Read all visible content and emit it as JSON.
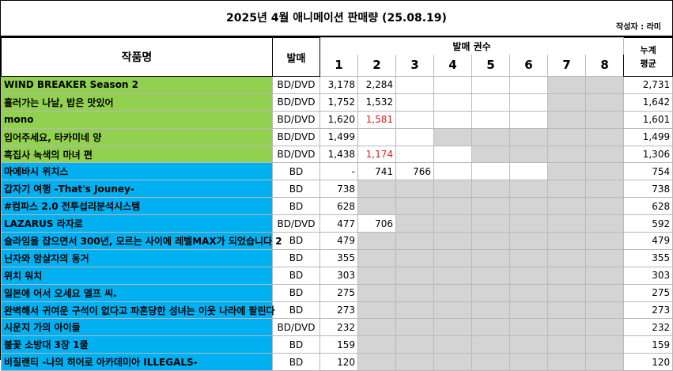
{
  "header": {
    "title": "2025년 4월 애니메이션 판매량 (25.08.19)",
    "author": "작성자 : 라미"
  },
  "columns": {
    "title": "작품명",
    "type": "발매",
    "volumes": "발매 권수",
    "volume_numbers": [
      "1",
      "2",
      "3",
      "4",
      "5",
      "6",
      "7",
      "8"
    ],
    "avg_line1": "누계",
    "avg_line2": "평균"
  },
  "colors": {
    "group_bddvd": "#92d050",
    "group_bd": "#00b0f0",
    "gray_cell": "#d4d4d4",
    "red_value": "#e0201c"
  },
  "rows": [
    {
      "title": "WIND BREAKER Season 2",
      "type": "BD/DVD",
      "group": "green",
      "vals": [
        "3,178",
        "2,284",
        "",
        "",
        "",
        "",
        "",
        ""
      ],
      "red": [],
      "avail": 6,
      "avg": "2,731"
    },
    {
      "title": "흘러가는 나날, 밥은 맛있어",
      "type": "BD/DVD",
      "group": "green",
      "vals": [
        "1,752",
        "1,532",
        "",
        "",
        "",
        "",
        "",
        ""
      ],
      "red": [],
      "avail": 6,
      "avg": "1,642"
    },
    {
      "title": "mono",
      "type": "BD/DVD",
      "group": "green",
      "vals": [
        "1,620",
        "1,581",
        "",
        "",
        "",
        "",
        "",
        ""
      ],
      "red": [
        1
      ],
      "avail": 6,
      "avg": "1,601"
    },
    {
      "title": "입어주세요, 타카미네 양",
      "type": "BD/DVD",
      "group": "green",
      "vals": [
        "1,499",
        "",
        "",
        "",
        "",
        "",
        "",
        ""
      ],
      "red": [],
      "avail": 3,
      "avg": "1,499"
    },
    {
      "title": "흑집사 녹색의 마녀 편",
      "type": "BD/DVD",
      "group": "green",
      "vals": [
        "1,438",
        "1,174",
        "",
        "",
        "",
        "",
        "",
        ""
      ],
      "red": [
        1
      ],
      "avail": 4,
      "avg": "1,306"
    },
    {
      "title": "마에바시 위치스",
      "type": "BD",
      "group": "blue",
      "vals": [
        "-",
        "741",
        "766",
        "",
        "",
        "",
        "",
        ""
      ],
      "red": [],
      "avail": 6,
      "avg": "754"
    },
    {
      "title": "갑자기 여행 -That's Jouney-",
      "type": "BD",
      "group": "blue",
      "vals": [
        "738",
        "",
        "",
        "",
        "",
        "",
        "",
        ""
      ],
      "red": [],
      "avail": 1,
      "avg": "738"
    },
    {
      "title": "#컴파스 2.0 전투섭리분석시스템",
      "type": "BD",
      "group": "blue",
      "vals": [
        "628",
        "",
        "",
        "",
        "",
        "",
        "",
        ""
      ],
      "red": [],
      "avail": 1,
      "avg": "628"
    },
    {
      "title": "LAZARUS 라자로",
      "type": "BD/DVD",
      "group": "blue",
      "vals": [
        "477",
        "706",
        "",
        "",
        "",
        "",
        "",
        ""
      ],
      "red": [],
      "avail": 2,
      "avg": "592"
    },
    {
      "title": "슬라임을 잡으면서 300년, 모르는 사이에 레벨MAX가 되었습니다 2",
      "type": "BD",
      "group": "blue",
      "vals": [
        "479",
        "",
        "",
        "",
        "",
        "",
        "",
        ""
      ],
      "red": [],
      "avail": 1,
      "avg": "479"
    },
    {
      "title": "닌자와 암살자의 동거",
      "type": "BD",
      "group": "blue",
      "vals": [
        "355",
        "",
        "",
        "",
        "",
        "",
        "",
        ""
      ],
      "red": [],
      "avail": 1,
      "avg": "355"
    },
    {
      "title": "위치 워치",
      "type": "BD",
      "group": "blue",
      "vals": [
        "303",
        "",
        "",
        "",
        "",
        "",
        "",
        ""
      ],
      "red": [],
      "avail": 1,
      "avg": "303"
    },
    {
      "title": "일본에 어서 오세요 엘프 씨.",
      "type": "BD",
      "group": "blue",
      "vals": [
        "275",
        "",
        "",
        "",
        "",
        "",
        "",
        ""
      ],
      "red": [],
      "avail": 1,
      "avg": "275"
    },
    {
      "title": "완벽해서 귀여운 구석이 없다고 파혼당한 성녀는 이웃 나라에 팔린다",
      "type": "BD",
      "group": "blue",
      "vals": [
        "273",
        "",
        "",
        "",
        "",
        "",
        "",
        ""
      ],
      "red": [],
      "avail": 1,
      "avg": "273"
    },
    {
      "title": "시운지 가의 아이들",
      "type": "BD/DVD",
      "group": "blue",
      "vals": [
        "232",
        "",
        "",
        "",
        "",
        "",
        "",
        ""
      ],
      "red": [],
      "avail": 1,
      "avg": "232"
    },
    {
      "title": "불꽃 소방대 3장 1쿨",
      "type": "BD",
      "group": "blue",
      "vals": [
        "159",
        "",
        "",
        "",
        "",
        "",
        "",
        ""
      ],
      "red": [],
      "avail": 1,
      "avg": "159"
    },
    {
      "title": "비질랜티 -나의 히어로 아카데미아 ILLEGALS-",
      "type": "BD",
      "group": "blue",
      "vals": [
        "120",
        "",
        "",
        "",
        "",
        "",
        "",
        ""
      ],
      "red": [],
      "avail": 1,
      "avg": "120"
    }
  ]
}
